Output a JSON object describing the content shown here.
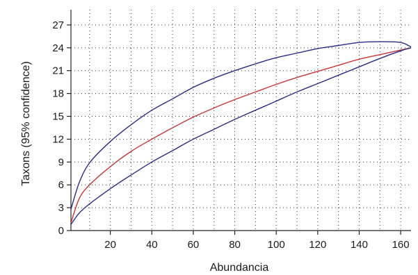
{
  "chart_data": {
    "type": "line",
    "title": "",
    "xlabel": "Abundancia",
    "ylabel": "Taxons (95% confidence)",
    "xlim": [
      1,
      165
    ],
    "ylim": [
      0,
      29
    ],
    "xticks": [
      20,
      40,
      60,
      80,
      100,
      120,
      140,
      160
    ],
    "yticks": [
      0,
      3,
      6,
      9,
      12,
      15,
      18,
      21,
      24,
      27
    ],
    "grid": true,
    "legend": "none",
    "colors": {
      "expected": "#cc3333",
      "bounds": "#2a2a8a",
      "axis": "#222222",
      "grid": "#333333"
    },
    "series": [
      {
        "role": "upper-95",
        "x": [
          1,
          5,
          10,
          20,
          30,
          40,
          50,
          60,
          70,
          80,
          90,
          100,
          110,
          120,
          130,
          140,
          150,
          160,
          165
        ],
        "values": [
          2.8,
          6.3,
          8.9,
          11.7,
          13.9,
          15.8,
          17.3,
          18.8,
          20.0,
          21.0,
          21.9,
          22.7,
          23.3,
          23.9,
          24.3,
          24.7,
          24.8,
          24.7,
          24.1
        ]
      },
      {
        "role": "expected",
        "x": [
          1,
          5,
          10,
          20,
          30,
          40,
          50,
          60,
          70,
          80,
          90,
          100,
          110,
          120,
          130,
          140,
          150,
          160,
          165
        ],
        "values": [
          1.0,
          4.2,
          6.0,
          8.4,
          10.4,
          12.0,
          13.5,
          14.9,
          16.1,
          17.2,
          18.2,
          19.2,
          20.1,
          20.9,
          21.7,
          22.5,
          23.1,
          23.7,
          24.0
        ]
      },
      {
        "role": "lower-95",
        "x": [
          1,
          5,
          10,
          20,
          30,
          40,
          50,
          60,
          70,
          80,
          90,
          100,
          110,
          120,
          130,
          140,
          150,
          160,
          165
        ],
        "values": [
          0.8,
          2.3,
          3.5,
          5.5,
          7.3,
          9.0,
          10.5,
          12.0,
          13.3,
          14.6,
          15.8,
          17.0,
          18.2,
          19.3,
          20.4,
          21.5,
          22.6,
          23.6,
          24.0
        ]
      }
    ]
  }
}
